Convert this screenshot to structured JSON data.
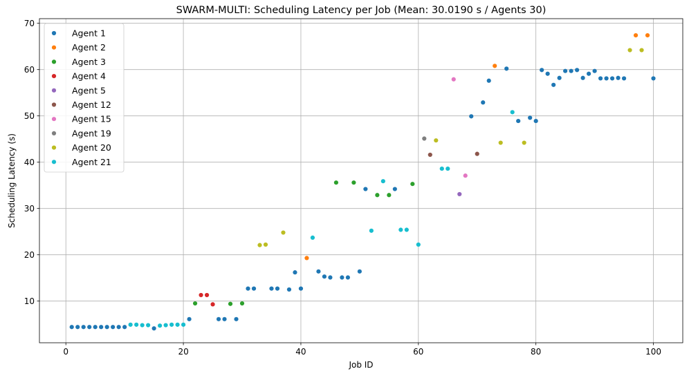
{
  "chart_data": {
    "type": "scatter",
    "title": "SWARM-MULTI: Scheduling Latency per Job (Mean: 30.0190 s / Agents 30)",
    "xlabel": "Job ID",
    "ylabel": "Scheduling Latency (s)",
    "xlim": [
      -4.5,
      105
    ],
    "ylim": [
      1,
      71
    ],
    "xticks": [
      0,
      20,
      40,
      60,
      80,
      100
    ],
    "yticks": [
      10,
      20,
      30,
      40,
      50,
      60,
      70
    ],
    "grid": true,
    "legend_position": "top-left",
    "series": [
      {
        "name": "Agent 1",
        "color": "#1f77b4",
        "points": [
          [
            1,
            4.4
          ],
          [
            2,
            4.4
          ],
          [
            3,
            4.4
          ],
          [
            4,
            4.4
          ],
          [
            5,
            4.4
          ],
          [
            6,
            4.4
          ],
          [
            7,
            4.4
          ],
          [
            8,
            4.4
          ],
          [
            9,
            4.4
          ],
          [
            10,
            4.4
          ],
          [
            15,
            4.1
          ],
          [
            21,
            6.1
          ],
          [
            26,
            6.1
          ],
          [
            27,
            6.1
          ],
          [
            29,
            6.1
          ],
          [
            31,
            12.7
          ],
          [
            32,
            12.7
          ],
          [
            35,
            12.7
          ],
          [
            36,
            12.7
          ],
          [
            38,
            12.5
          ],
          [
            39,
            16.2
          ],
          [
            40,
            12.7
          ],
          [
            43,
            16.4
          ],
          [
            44,
            15.3
          ],
          [
            45,
            15.1
          ],
          [
            47,
            15.1
          ],
          [
            48,
            15.1
          ],
          [
            50,
            16.4
          ],
          [
            51,
            34.2
          ],
          [
            56,
            34.2
          ],
          [
            69,
            49.9
          ],
          [
            71,
            52.9
          ],
          [
            72,
            57.6
          ],
          [
            75,
            60.2
          ],
          [
            77,
            48.9
          ],
          [
            79,
            49.6
          ],
          [
            80,
            48.9
          ],
          [
            81,
            59.9
          ],
          [
            82,
            59.1
          ],
          [
            83,
            56.7
          ],
          [
            84,
            58.2
          ],
          [
            85,
            59.7
          ],
          [
            86,
            59.7
          ],
          [
            87,
            59.9
          ],
          [
            88,
            58.2
          ],
          [
            89,
            59.1
          ],
          [
            90,
            59.7
          ],
          [
            91,
            58.1
          ],
          [
            92,
            58.1
          ],
          [
            93,
            58.1
          ],
          [
            94,
            58.2
          ],
          [
            95,
            58.1
          ],
          [
            100,
            58.1
          ]
        ]
      },
      {
        "name": "Agent 2",
        "color": "#ff7f0e",
        "points": [
          [
            41,
            19.3
          ],
          [
            73,
            60.8
          ],
          [
            97,
            67.4
          ],
          [
            99,
            67.4
          ]
        ]
      },
      {
        "name": "Agent 3",
        "color": "#2ca02c",
        "points": [
          [
            22,
            9.5
          ],
          [
            28,
            9.4
          ],
          [
            30,
            9.5
          ],
          [
            46,
            35.6
          ],
          [
            49,
            35.6
          ],
          [
            53,
            32.9
          ],
          [
            55,
            32.9
          ],
          [
            59,
            35.3
          ]
        ]
      },
      {
        "name": "Agent 4",
        "color": "#d62728",
        "points": [
          [
            23,
            11.3
          ],
          [
            24,
            11.3
          ],
          [
            25,
            9.3
          ]
        ]
      },
      {
        "name": "Agent 5",
        "color": "#9467bd",
        "points": [
          [
            67,
            33.1
          ]
        ]
      },
      {
        "name": "Agent 12",
        "color": "#8c564b",
        "points": [
          [
            62,
            41.6
          ],
          [
            70,
            41.8
          ]
        ]
      },
      {
        "name": "Agent 15",
        "color": "#e377c2",
        "points": [
          [
            66,
            57.9
          ],
          [
            68,
            37.1
          ]
        ]
      },
      {
        "name": "Agent 19",
        "color": "#7f7f7f",
        "points": [
          [
            61,
            45.1
          ]
        ]
      },
      {
        "name": "Agent 20",
        "color": "#bcbd22",
        "points": [
          [
            33,
            22.1
          ],
          [
            34,
            22.2
          ],
          [
            37,
            24.8
          ],
          [
            63,
            44.7
          ],
          [
            74,
            44.2
          ],
          [
            78,
            44.2
          ],
          [
            96,
            64.2
          ],
          [
            98,
            64.2
          ]
        ]
      },
      {
        "name": "Agent 21",
        "color": "#17becf",
        "points": [
          [
            11,
            4.9
          ],
          [
            12,
            4.9
          ],
          [
            13,
            4.8
          ],
          [
            14,
            4.8
          ],
          [
            16,
            4.7
          ],
          [
            17,
            4.8
          ],
          [
            18,
            4.9
          ],
          [
            19,
            4.9
          ],
          [
            20,
            4.9
          ],
          [
            42,
            23.7
          ],
          [
            52,
            25.2
          ],
          [
            54,
            35.9
          ],
          [
            57,
            25.4
          ],
          [
            58,
            25.4
          ],
          [
            60,
            22.2
          ],
          [
            64,
            38.6
          ],
          [
            65,
            38.6
          ],
          [
            76,
            50.8
          ]
        ]
      }
    ]
  }
}
